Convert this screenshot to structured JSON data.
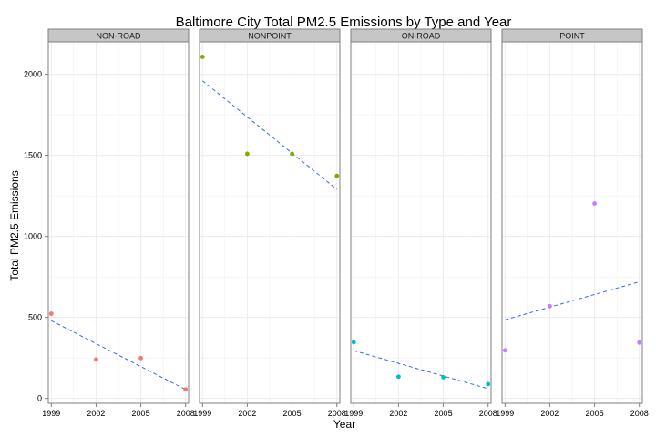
{
  "chart_data": {
    "type": "scatter",
    "title": "Baltimore City Total PM2.5 Emissions by Type and Year",
    "xlabel": "Year",
    "ylabel": "Total PM2.5 Emissions",
    "x_ticks": [
      1999,
      2002,
      2005,
      2008
    ],
    "y_ticks": [
      0,
      500,
      1000,
      1500,
      2000
    ],
    "xlim": [
      1998.8,
      2008.2
    ],
    "ylim": [
      -30,
      2200
    ],
    "grid": true,
    "legend": "none",
    "trend_line_style": "dashed",
    "trend_line_color": "#3366ff",
    "panel_border_color": "#7f7f7f",
    "strip_fill": "#c6c6c6",
    "grid_color": "#ececec",
    "panels": [
      {
        "label": "NON-ROAD",
        "color": "#f8766d",
        "x": [
          1999,
          2002,
          2005,
          2008
        ],
        "y": [
          522.9,
          240.8,
          248.9,
          55.8
        ],
        "trend": [
          480,
          55
        ]
      },
      {
        "label": "NONPOINT",
        "color": "#7cae00",
        "x": [
          1999,
          2002,
          2005,
          2008
        ],
        "y": [
          2107.6,
          1509.5,
          1509.5,
          1373.2
        ],
        "trend": [
          1960,
          1290
        ]
      },
      {
        "label": "ON-ROAD",
        "color": "#00bfc4",
        "x": [
          1999,
          2002,
          2005,
          2008
        ],
        "y": [
          346.8,
          134.3,
          130.4,
          88.3
        ],
        "trend": [
          295,
          60
        ]
      },
      {
        "label": "POINT",
        "color": "#c77cff",
        "x": [
          1999,
          2002,
          2005,
          2008
        ],
        "y": [
          296.8,
          569.3,
          1202.5,
          344.98
        ],
        "trend": [
          485,
          720
        ]
      }
    ]
  }
}
